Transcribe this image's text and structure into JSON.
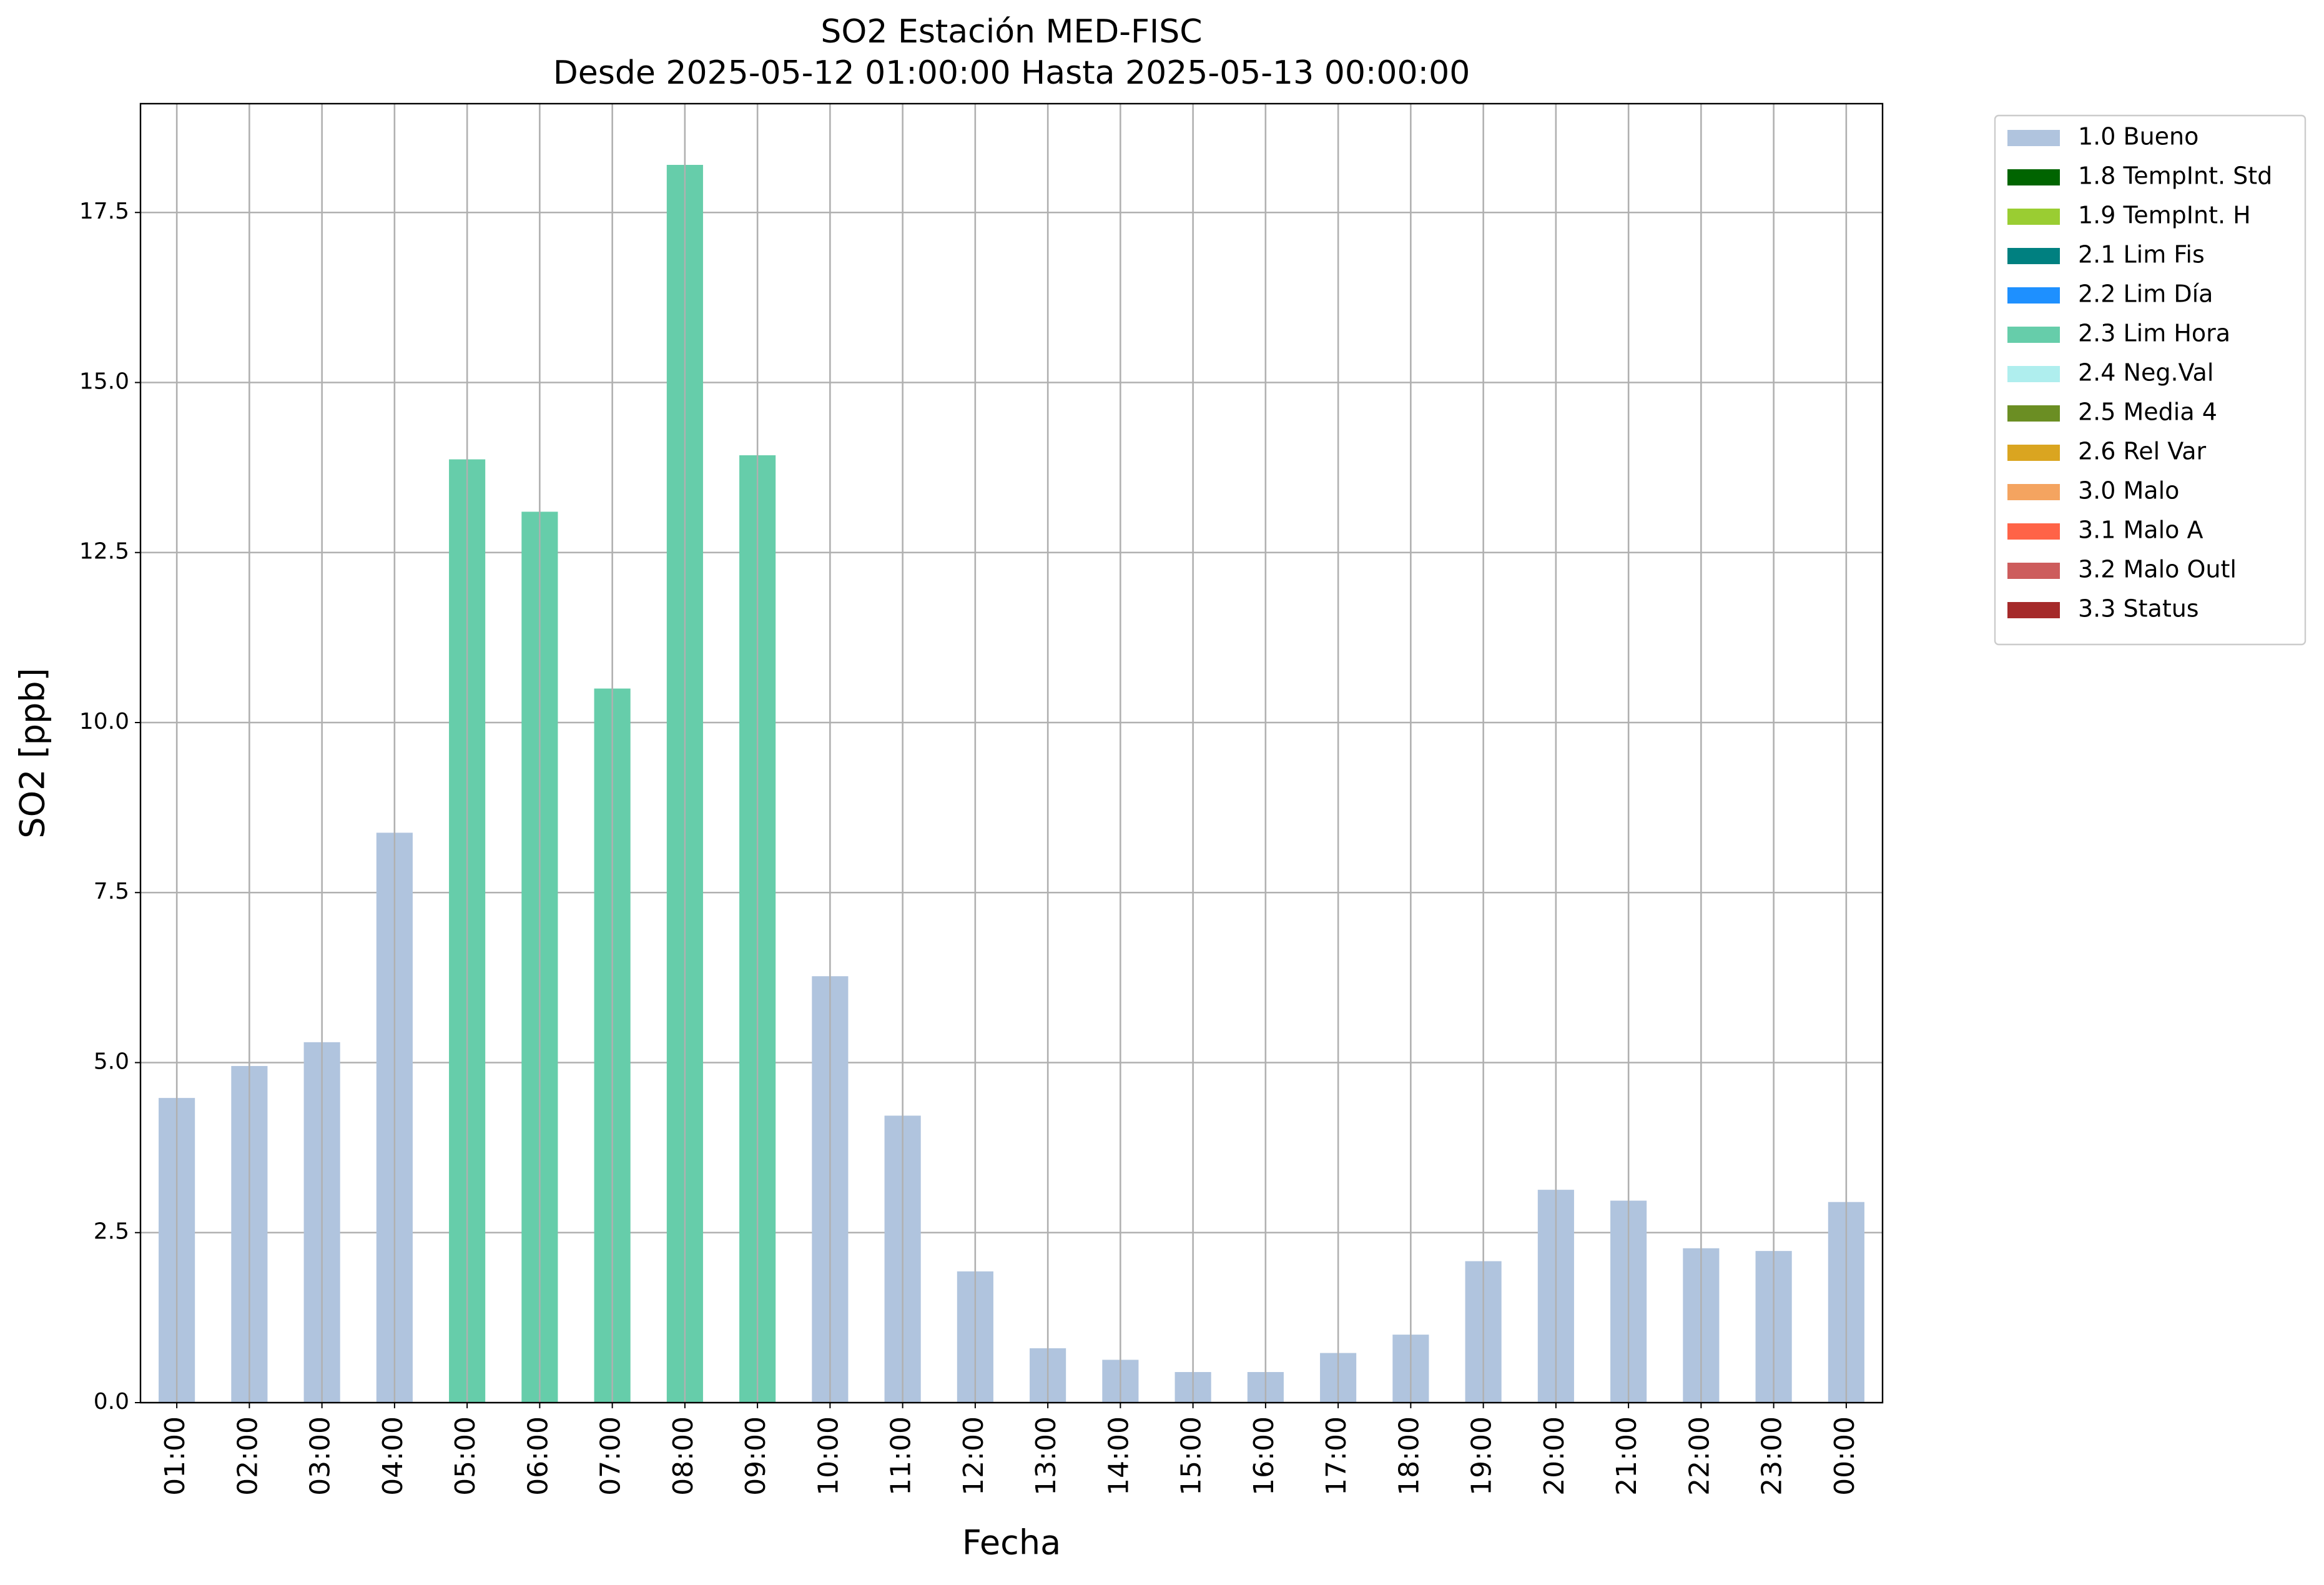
{
  "chart_data": {
    "type": "bar",
    "stacked": true,
    "title": "SO2 Estación MED-FISC",
    "subtitle": "Desde 2025-05-12 01:00:00 Hasta 2025-05-13 00:00:00",
    "x_label": "Fecha",
    "y_label": "SO2 [ppb]",
    "categories": [
      "01:00",
      "02:00",
      "03:00",
      "04:00",
      "05:00",
      "06:00",
      "07:00",
      "08:00",
      "09:00",
      "10:00",
      "11:00",
      "12:00",
      "13:00",
      "14:00",
      "15:00",
      "16:00",
      "17:00",
      "18:00",
      "19:00",
      "20:00",
      "21:00",
      "22:00",
      "23:00",
      "00:00"
    ],
    "series": [
      {
        "name": "1.0 Bueno",
        "color": "#b0c4de",
        "values": [
          4.48,
          4.95,
          5.3,
          8.38,
          null,
          null,
          null,
          null,
          null,
          6.27,
          4.22,
          1.93,
          0.8,
          0.63,
          0.45,
          0.45,
          0.73,
          1.0,
          2.08,
          3.13,
          2.97,
          2.27,
          2.23,
          2.95
        ]
      },
      {
        "name": "1.8 TempInt. Std",
        "color": "#006400",
        "values": [
          null,
          null,
          null,
          null,
          null,
          null,
          null,
          null,
          null,
          null,
          null,
          null,
          null,
          null,
          null,
          null,
          null,
          null,
          null,
          null,
          null,
          null,
          null,
          null
        ]
      },
      {
        "name": "1.9 TempInt. H",
        "color": "#9acd32",
        "values": [
          null,
          null,
          null,
          null,
          null,
          null,
          null,
          null,
          null,
          null,
          null,
          null,
          null,
          null,
          null,
          null,
          null,
          null,
          null,
          null,
          null,
          null,
          null,
          null
        ]
      },
      {
        "name": "2.1 Lim Fis",
        "color": "#008080",
        "values": [
          null,
          null,
          null,
          null,
          null,
          null,
          null,
          null,
          null,
          null,
          null,
          null,
          null,
          null,
          null,
          null,
          null,
          null,
          null,
          null,
          null,
          null,
          null,
          null
        ]
      },
      {
        "name": "2.2 Lim Día",
        "color": "#1e90ff",
        "values": [
          null,
          null,
          null,
          null,
          null,
          null,
          null,
          null,
          null,
          null,
          null,
          null,
          null,
          null,
          null,
          null,
          null,
          null,
          null,
          null,
          null,
          null,
          null,
          null
        ]
      },
      {
        "name": "2.3 Lim Hora",
        "color": "#66cdaa",
        "values": [
          null,
          null,
          null,
          null,
          13.87,
          13.1,
          10.5,
          18.2,
          13.93,
          null,
          null,
          null,
          null,
          null,
          null,
          null,
          null,
          null,
          null,
          null,
          null,
          null,
          null,
          null
        ]
      },
      {
        "name": "2.4 Neg.Val",
        "color": "#afeeee",
        "values": [
          null,
          null,
          null,
          null,
          null,
          null,
          null,
          null,
          null,
          null,
          null,
          null,
          null,
          null,
          null,
          null,
          null,
          null,
          null,
          null,
          null,
          null,
          null,
          null
        ]
      },
      {
        "name": "2.5 Media 4",
        "color": "#6b8e23",
        "values": [
          null,
          null,
          null,
          null,
          null,
          null,
          null,
          null,
          null,
          null,
          null,
          null,
          null,
          null,
          null,
          null,
          null,
          null,
          null,
          null,
          null,
          null,
          null,
          null
        ]
      },
      {
        "name": "2.6 Rel Var",
        "color": "#daa520",
        "values": [
          null,
          null,
          null,
          null,
          null,
          null,
          null,
          null,
          null,
          null,
          null,
          null,
          null,
          null,
          null,
          null,
          null,
          null,
          null,
          null,
          null,
          null,
          null,
          null
        ]
      },
      {
        "name": "3.0 Malo",
        "color": "#f4a460",
        "values": [
          null,
          null,
          null,
          null,
          null,
          null,
          null,
          null,
          null,
          null,
          null,
          null,
          null,
          null,
          null,
          null,
          null,
          null,
          null,
          null,
          null,
          null,
          null,
          null
        ]
      },
      {
        "name": "3.1 Malo A",
        "color": "#ff6347",
        "values": [
          null,
          null,
          null,
          null,
          null,
          null,
          null,
          null,
          null,
          null,
          null,
          null,
          null,
          null,
          null,
          null,
          null,
          null,
          null,
          null,
          null,
          null,
          null,
          null
        ]
      },
      {
        "name": "3.2 Malo Outl",
        "color": "#cd5c5c",
        "values": [
          null,
          null,
          null,
          null,
          null,
          null,
          null,
          null,
          null,
          null,
          null,
          null,
          null,
          null,
          null,
          null,
          null,
          null,
          null,
          null,
          null,
          null,
          null,
          null
        ]
      },
      {
        "name": "3.3 Status",
        "color": "#a52a2a",
        "values": [
          null,
          null,
          null,
          null,
          null,
          null,
          null,
          null,
          null,
          null,
          null,
          null,
          null,
          null,
          null,
          null,
          null,
          null,
          null,
          null,
          null,
          null,
          null,
          null
        ]
      }
    ],
    "ylim": [
      0,
      19.1
    ],
    "yticks": [
      {
        "value": 0,
        "label": "0.0"
      },
      2.5,
      {
        "value": 5,
        "label": "5.0"
      },
      7.5,
      {
        "value": 10,
        "label": "10.0"
      },
      12.5,
      {
        "value": 15,
        "label": "15.0"
      },
      17.5
    ],
    "grid": true,
    "legend": "outside-right"
  }
}
